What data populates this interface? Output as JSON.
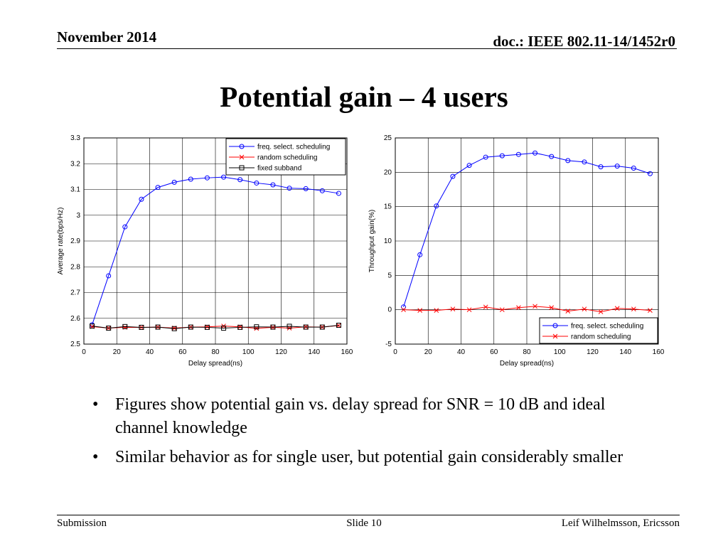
{
  "header": {
    "date": "November 2014",
    "doc": "doc.: IEEE 802.11-14/1452r0"
  },
  "slide_title": "Potential gain – 4 users",
  "chart_data": [
    {
      "type": "line",
      "xlabel": "Delay spread(ns)",
      "ylabel": "Average rate(bps/Hz)",
      "xlim": [
        0,
        160
      ],
      "ylim": [
        2.5,
        3.3
      ],
      "xticks": [
        0,
        20,
        40,
        60,
        80,
        100,
        120,
        140,
        160
      ],
      "yticks": [
        2.5,
        2.6,
        2.7,
        2.8,
        2.9,
        3,
        3.1,
        3.2,
        3.3
      ],
      "ytick_labels": [
        "2.5",
        "2.6",
        "2.7",
        "2.8",
        "2.9",
        "3",
        "3.1",
        "3.2",
        "3.3"
      ],
      "grid": true,
      "legend_position": "top-right",
      "x": [
        5,
        15,
        25,
        35,
        45,
        55,
        65,
        75,
        85,
        95,
        105,
        115,
        125,
        135,
        145,
        155
      ],
      "series": [
        {
          "name": "freq. select. scheduling",
          "color": "#0000ff",
          "marker": "circle",
          "values": [
            2.575,
            2.765,
            2.955,
            3.062,
            3.108,
            3.128,
            3.14,
            3.145,
            3.148,
            3.138,
            3.125,
            3.118,
            3.105,
            3.103,
            3.095,
            3.085
          ]
        },
        {
          "name": "random scheduling",
          "color": "#ff0000",
          "marker": "x",
          "values": [
            2.568,
            2.562,
            2.565,
            2.565,
            2.566,
            2.562,
            2.566,
            2.567,
            2.57,
            2.567,
            2.561,
            2.565,
            2.562,
            2.567,
            2.566,
            2.572
          ]
        },
        {
          "name": "fixed subband",
          "color": "#000000",
          "marker": "square",
          "values": [
            2.57,
            2.562,
            2.568,
            2.565,
            2.566,
            2.56,
            2.566,
            2.565,
            2.562,
            2.565,
            2.567,
            2.566,
            2.569,
            2.566,
            2.566,
            2.573
          ]
        }
      ]
    },
    {
      "type": "line",
      "xlabel": "Delay spread(ns)",
      "ylabel": "Throughput gain(%)",
      "xlim": [
        0,
        160
      ],
      "ylim": [
        -5,
        25
      ],
      "xticks": [
        0,
        20,
        40,
        60,
        80,
        100,
        120,
        140,
        160
      ],
      "yticks": [
        -5,
        0,
        5,
        10,
        15,
        20,
        25
      ],
      "ytick_labels": [
        "-5",
        "0",
        "5",
        "10",
        "15",
        "20",
        "25"
      ],
      "grid": true,
      "legend_position": "bottom-right",
      "x": [
        5,
        15,
        25,
        35,
        45,
        55,
        65,
        75,
        85,
        95,
        105,
        115,
        125,
        135,
        145,
        155
      ],
      "series": [
        {
          "name": "freq. select. scheduling",
          "color": "#0000ff",
          "marker": "circle",
          "values": [
            0.4,
            8.0,
            15.1,
            19.4,
            21.0,
            22.2,
            22.4,
            22.6,
            22.8,
            22.3,
            21.7,
            21.5,
            20.8,
            20.9,
            20.6,
            19.8
          ]
        },
        {
          "name": "random scheduling",
          "color": "#ff0000",
          "marker": "x",
          "values": [
            0.0,
            -0.1,
            -0.1,
            0.1,
            0.0,
            0.4,
            0.0,
            0.3,
            0.5,
            0.3,
            -0.2,
            0.1,
            -0.3,
            0.2,
            0.1,
            -0.1
          ]
        }
      ]
    }
  ],
  "bullets": [
    "Figures show potential gain vs. delay spread  for SNR = 10 dB and ideal channel knowledge",
    "Similar behavior as for single user, but potential gain considerably smaller"
  ],
  "footer": {
    "left": "Submission",
    "center": "Slide 10",
    "right": "Leif Wilhelmsson, Ericsson"
  }
}
